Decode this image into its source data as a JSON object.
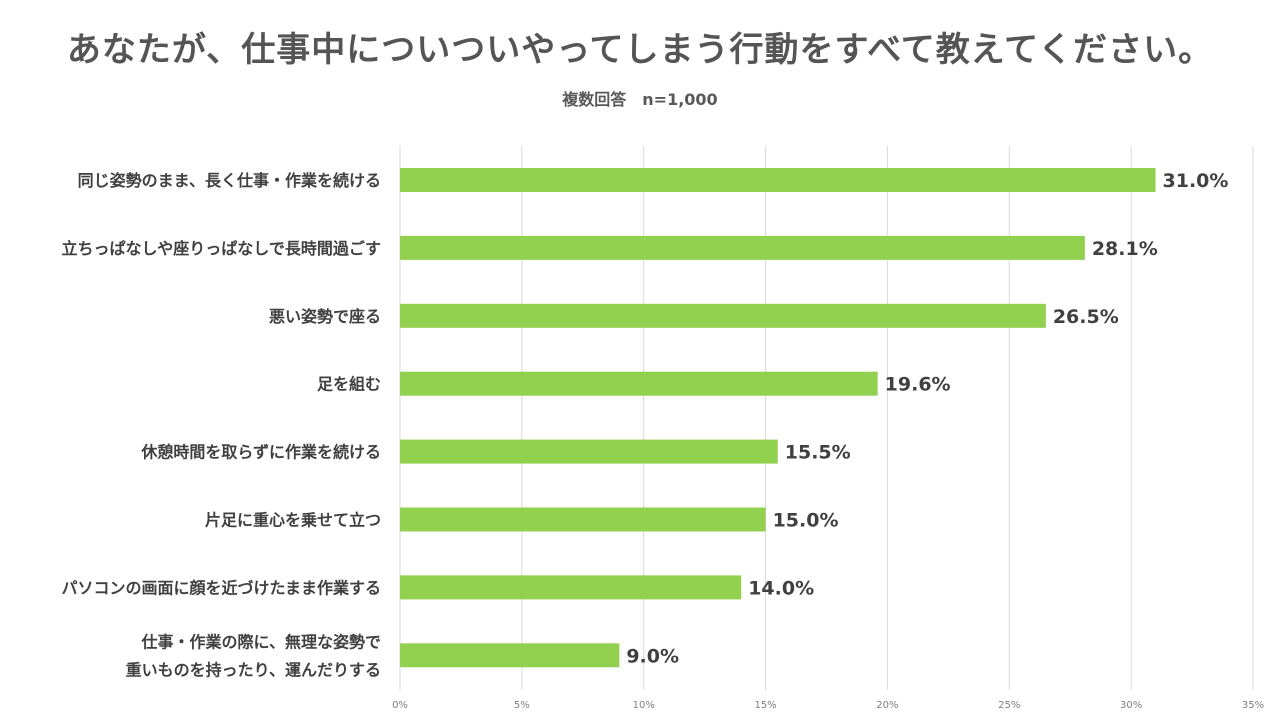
{
  "chart_data": {
    "type": "bar",
    "orientation": "horizontal",
    "title": "あなたが、仕事中についついやってしまう行動をすべて教えてください。",
    "subtitle": "複数回答　n=1,000",
    "categories": [
      [
        "同じ姿勢のまま、長く仕事・作業を続ける"
      ],
      [
        "立ちっぱなしや座りっぱなしで長時間過ごす"
      ],
      [
        "悪い姿勢で座る"
      ],
      [
        "足を組む"
      ],
      [
        "休憩時間を取らずに作業を続ける"
      ],
      [
        "片足に重心を乗せて立つ"
      ],
      [
        "パソコンの画面に顔を近づけたまま作業する"
      ],
      [
        "仕事・作業の際に、無理な姿勢で",
        "重いものを持ったり、運んだりする"
      ]
    ],
    "values": [
      31.0,
      28.1,
      26.5,
      19.6,
      15.5,
      15.0,
      14.0,
      9.0
    ],
    "value_labels": [
      "31.0%",
      "28.1%",
      "26.5%",
      "19.6%",
      "15.5%",
      "15.0%",
      "14.0%",
      "9.0%"
    ],
    "x_ticks": [
      0,
      5,
      10,
      15,
      20,
      25,
      30,
      35
    ],
    "x_tick_labels": [
      "0%",
      "5%",
      "10%",
      "15%",
      "20%",
      "25%",
      "30%",
      "35%"
    ],
    "xlim": [
      0,
      35
    ],
    "xlabel": "",
    "ylabel": "",
    "grid": true,
    "legend": "none",
    "bar_color": "#92d050",
    "grid_color": "#d9d9d9"
  }
}
